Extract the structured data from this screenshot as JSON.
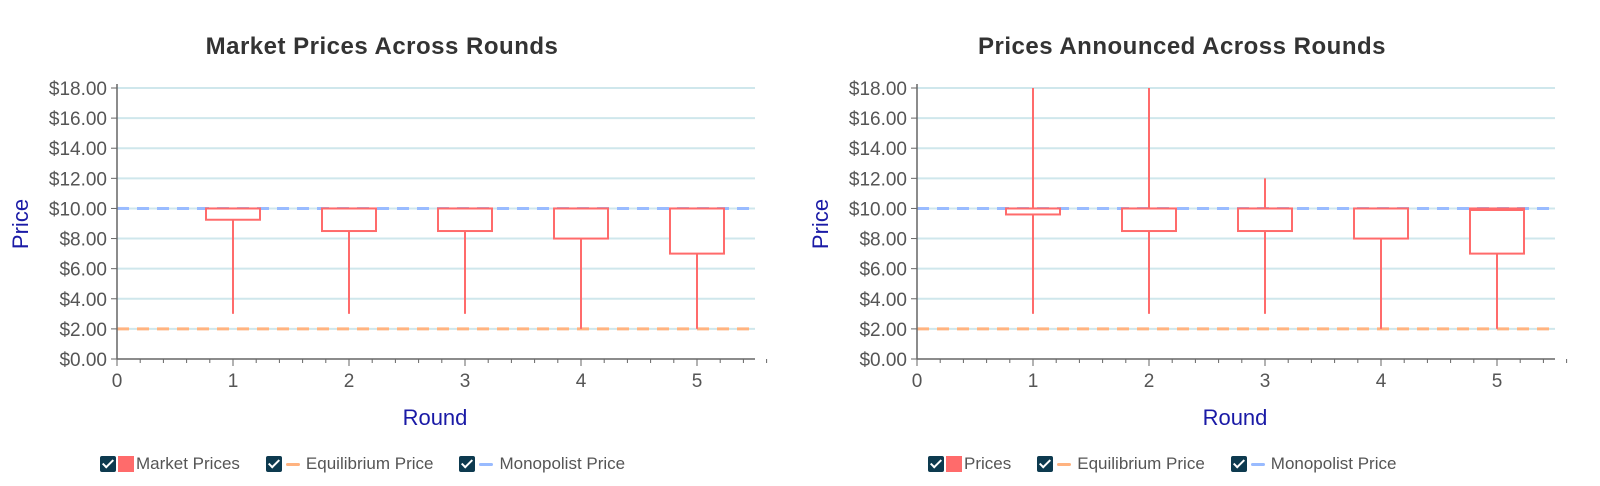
{
  "colors": {
    "box": "#ff6b6b",
    "equilibrium": "#ffb380",
    "monopolist": "#99bbff",
    "grid": "#cfe7ec",
    "axis": "#666666",
    "axis_title": "#1a1aa6",
    "checkbox": "#0d3a4f"
  },
  "chart_data": [
    {
      "type": "box",
      "title": "Market Prices Across Rounds",
      "xlabel": "Round",
      "ylabel": "Price",
      "xlim": [
        0,
        5.5
      ],
      "ylim": [
        0,
        18
      ],
      "x_ticks": [
        "0",
        "1",
        "2",
        "3",
        "4",
        "5"
      ],
      "y_ticks": [
        "$0.00",
        "$2.00",
        "$4.00",
        "$6.00",
        "$8.00",
        "$10.00",
        "$12.00",
        "$14.00",
        "$16.00",
        "$18.00"
      ],
      "grid": true,
      "rounds": [
        1,
        2,
        3,
        4,
        5
      ],
      "series": [
        {
          "name": "Market Prices",
          "boxes": [
            {
              "x": 1,
              "min": 3,
              "q1": 9.25,
              "median": 10,
              "q3": 10,
              "max": 10
            },
            {
              "x": 2,
              "min": 3,
              "q1": 8.5,
              "median": 10,
              "q3": 10,
              "max": 10
            },
            {
              "x": 3,
              "min": 3,
              "q1": 8.5,
              "median": 10,
              "q3": 10,
              "max": 10
            },
            {
              "x": 4,
              "min": 2,
              "q1": 8,
              "median": 10,
              "q3": 10,
              "max": 10
            },
            {
              "x": 5,
              "min": 2,
              "q1": 7,
              "median": 10,
              "q3": 10,
              "max": 10
            }
          ]
        }
      ],
      "reference_lines": [
        {
          "name": "Equilibrium Price",
          "y": 2
        },
        {
          "name": "Monopolist Price",
          "y": 10
        }
      ],
      "legend": [
        "Market Prices",
        "Equilibrium Price",
        "Monopolist Price"
      ],
      "legend_position": "bottom"
    },
    {
      "type": "box",
      "title": "Prices Announced Across Rounds",
      "xlabel": "Round",
      "ylabel": "Price",
      "xlim": [
        0,
        5.5
      ],
      "ylim": [
        0,
        18
      ],
      "x_ticks": [
        "0",
        "1",
        "2",
        "3",
        "4",
        "5"
      ],
      "y_ticks": [
        "$0.00",
        "$2.00",
        "$4.00",
        "$6.00",
        "$8.00",
        "$10.00",
        "$12.00",
        "$14.00",
        "$16.00",
        "$18.00"
      ],
      "grid": true,
      "rounds": [
        1,
        2,
        3,
        4,
        5
      ],
      "series": [
        {
          "name": "Prices",
          "boxes": [
            {
              "x": 1,
              "min": 3,
              "q1": 9.6,
              "median": 10,
              "q3": 10,
              "max": 18
            },
            {
              "x": 2,
              "min": 3,
              "q1": 8.5,
              "median": 10,
              "q3": 10,
              "max": 18
            },
            {
              "x": 3,
              "min": 3,
              "q1": 8.5,
              "median": 10,
              "q3": 10,
              "max": 12
            },
            {
              "x": 4,
              "min": 2,
              "q1": 8,
              "median": 10,
              "q3": 10,
              "max": 10
            },
            {
              "x": 5,
              "min": 2,
              "q1": 7,
              "median": 9.9,
              "q3": 10,
              "max": 10
            }
          ]
        }
      ],
      "reference_lines": [
        {
          "name": "Equilibrium Price",
          "y": 2
        },
        {
          "name": "Monopolist Price",
          "y": 10
        }
      ],
      "legend": [
        "Prices",
        "Equilibrium Price",
        "Monopolist Price"
      ],
      "legend_position": "bottom"
    }
  ]
}
